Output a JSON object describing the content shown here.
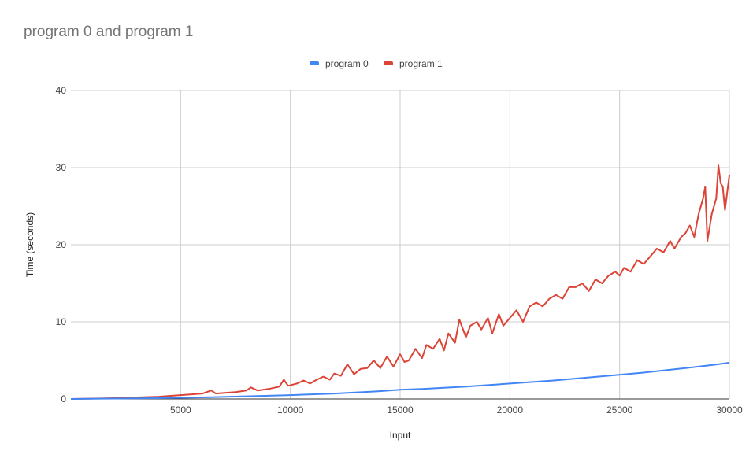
{
  "colors": {
    "program0": "#4285f4",
    "program1": "#db4437",
    "grid": "#cccccc",
    "axis": "#333333",
    "text": "#444444"
  },
  "chart_data": {
    "type": "line",
    "title": "program 0 and program 1",
    "xlabel": "Input",
    "ylabel": "Time (seconds)",
    "xlim": [
      0,
      30000
    ],
    "ylim": [
      0,
      40
    ],
    "xticks": [
      5000,
      10000,
      15000,
      20000,
      25000,
      30000
    ],
    "yticks": [
      0,
      10,
      20,
      30,
      40
    ],
    "grid": true,
    "legend": "top-center",
    "series": [
      {
        "name": "program 0",
        "color": "#4285f4",
        "x": [
          0,
          2000,
          4000,
          6000,
          8000,
          10000,
          12000,
          14000,
          15000,
          16000,
          18000,
          20000,
          22000,
          24000,
          26000,
          28000,
          29500,
          30000
        ],
        "y": [
          0,
          0.05,
          0.1,
          0.2,
          0.35,
          0.5,
          0.7,
          1.0,
          1.2,
          1.3,
          1.6,
          2.0,
          2.4,
          2.9,
          3.4,
          4.0,
          4.5,
          4.7
        ]
      },
      {
        "name": "program 1",
        "color": "#db4437",
        "x": [
          0,
          2000,
          3000,
          4000,
          5000,
          6000,
          6400,
          6600,
          7000,
          7500,
          8000,
          8200,
          8500,
          9000,
          9500,
          9700,
          9900,
          10300,
          10600,
          10900,
          11200,
          11500,
          11800,
          12000,
          12300,
          12600,
          12900,
          13200,
          13500,
          13800,
          14100,
          14400,
          14700,
          15000,
          15200,
          15400,
          15700,
          16000,
          16200,
          16500,
          16800,
          17000,
          17200,
          17500,
          17700,
          18000,
          18200,
          18500,
          18700,
          19000,
          19200,
          19500,
          19700,
          20000,
          20300,
          20600,
          20900,
          21200,
          21500,
          21800,
          22100,
          22400,
          22700,
          23000,
          23300,
          23600,
          23900,
          24200,
          24500,
          24800,
          25000,
          25200,
          25500,
          25800,
          26100,
          26400,
          26700,
          27000,
          27300,
          27500,
          27800,
          28000,
          28200,
          28400,
          28600,
          28800,
          28900,
          29000,
          29200,
          29400,
          29500,
          29600,
          29700,
          29800,
          30000
        ],
        "y": [
          0,
          0.1,
          0.2,
          0.3,
          0.5,
          0.7,
          1.1,
          0.7,
          0.8,
          0.9,
          1.1,
          1.5,
          1.1,
          1.3,
          1.6,
          2.5,
          1.7,
          2.0,
          2.4,
          2.0,
          2.5,
          2.9,
          2.5,
          3.3,
          3.0,
          4.5,
          3.2,
          3.9,
          4.0,
          5.0,
          4.0,
          5.5,
          4.2,
          5.8,
          4.8,
          5.0,
          6.5,
          5.3,
          7.0,
          6.5,
          7.8,
          6.3,
          8.5,
          7.3,
          10.3,
          8.0,
          9.5,
          10.0,
          9.0,
          10.5,
          8.5,
          11.0,
          9.5,
          10.5,
          11.5,
          10.0,
          12.0,
          12.5,
          12.0,
          13.0,
          13.5,
          13.0,
          14.5,
          14.5,
          15.0,
          14.0,
          15.5,
          15.0,
          16.0,
          16.5,
          16.0,
          17.0,
          16.5,
          18.0,
          17.5,
          18.5,
          19.5,
          19.0,
          20.5,
          19.5,
          21.0,
          21.5,
          22.5,
          21.0,
          24.0,
          26.0,
          27.5,
          20.5,
          24.0,
          26.0,
          30.3,
          28.0,
          27.5,
          24.5,
          29.0
        ]
      }
    ]
  }
}
